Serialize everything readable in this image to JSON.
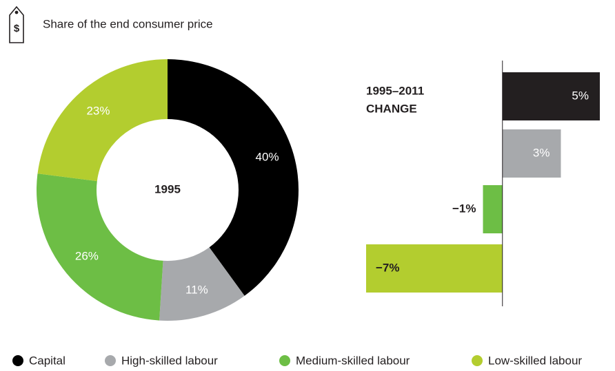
{
  "header": {
    "title": "Share of the end consumer price"
  },
  "chart_data": [
    {
      "type": "donut",
      "center_label": "1995",
      "categories": [
        "Capital",
        "High-skilled labour",
        "Medium-skilled labour",
        "Low-skilled labour"
      ],
      "values": [
        40,
        11,
        26,
        23
      ],
      "value_labels": [
        "40%",
        "11%",
        "26%",
        "23%"
      ],
      "colors": [
        "#000000",
        "#a7a9ac",
        "#6dbe45",
        "#b3cd2f"
      ]
    },
    {
      "type": "bar",
      "orientation": "horizontal",
      "title": [
        "1995–2011",
        "CHANGE"
      ],
      "categories": [
        "Capital",
        "High-skilled labour",
        "Medium-skilled labour",
        "Low-skilled labour"
      ],
      "values": [
        5,
        3,
        -1,
        -7
      ],
      "value_labels": [
        "5%",
        "3%",
        "−1%",
        "−7%"
      ],
      "colors": [
        "#231f20",
        "#a7a9ac",
        "#6dbe45",
        "#b3cd2f"
      ],
      "xlim": [
        -7,
        5
      ]
    }
  ]
}
